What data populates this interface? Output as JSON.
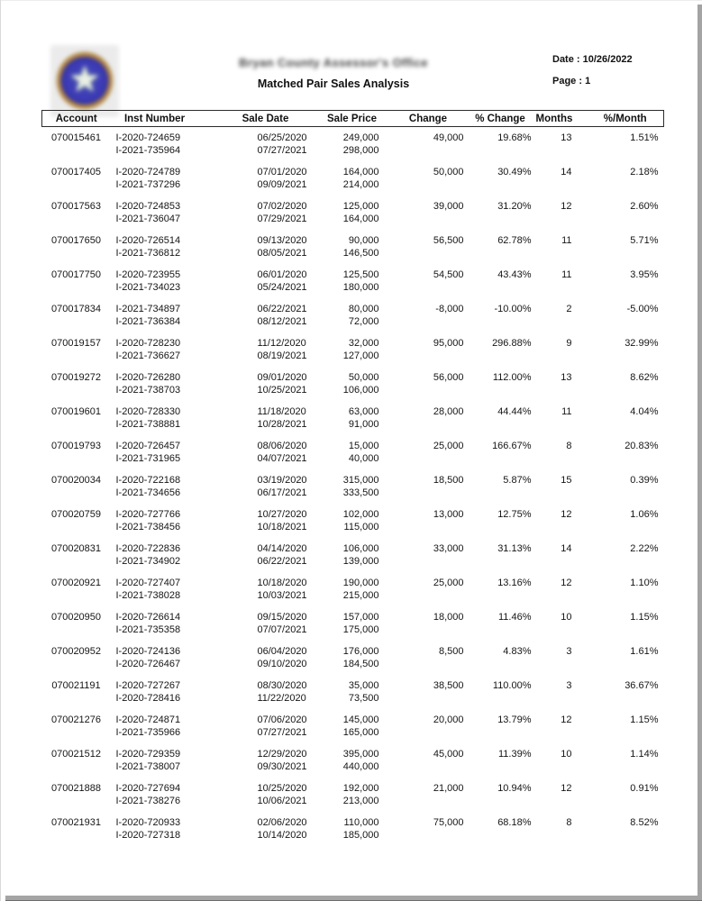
{
  "header": {
    "org_title": "Bryan County Assessor's Office",
    "report_title": "Matched Pair Sales Analysis",
    "date_label": "Date : 10/26/2022",
    "page_label": "Page : 1",
    "logo_icon": "county-seal-star",
    "star_glyph": "★"
  },
  "table": {
    "columns": [
      "Account",
      "Inst Number",
      "Sale Date",
      "Sale Price",
      "Change",
      "% Change",
      "Months",
      "%/Month"
    ],
    "rows": [
      {
        "account": "070015461",
        "inst": [
          "I-2020-724659",
          "I-2021-735964"
        ],
        "sale_date": [
          "06/25/2020",
          "07/27/2021"
        ],
        "sale_price": [
          "249,000",
          "298,000"
        ],
        "change": "49,000",
        "pct_change": "19.68%",
        "months": "13",
        "pct_per_month": "1.51%"
      },
      {
        "account": "070017405",
        "inst": [
          "I-2020-724789",
          "I-2021-737296"
        ],
        "sale_date": [
          "07/01/2020",
          "09/09/2021"
        ],
        "sale_price": [
          "164,000",
          "214,000"
        ],
        "change": "50,000",
        "pct_change": "30.49%",
        "months": "14",
        "pct_per_month": "2.18%"
      },
      {
        "account": "070017563",
        "inst": [
          "I-2020-724853",
          "I-2021-736047"
        ],
        "sale_date": [
          "07/02/2020",
          "07/29/2021"
        ],
        "sale_price": [
          "125,000",
          "164,000"
        ],
        "change": "39,000",
        "pct_change": "31.20%",
        "months": "12",
        "pct_per_month": "2.60%"
      },
      {
        "account": "070017650",
        "inst": [
          "I-2020-726514",
          "I-2021-736812"
        ],
        "sale_date": [
          "09/13/2020",
          "08/05/2021"
        ],
        "sale_price": [
          "90,000",
          "146,500"
        ],
        "change": "56,500",
        "pct_change": "62.78%",
        "months": "11",
        "pct_per_month": "5.71%"
      },
      {
        "account": "070017750",
        "inst": [
          "I-2020-723955",
          "I-2021-734023"
        ],
        "sale_date": [
          "06/01/2020",
          "05/24/2021"
        ],
        "sale_price": [
          "125,500",
          "180,000"
        ],
        "change": "54,500",
        "pct_change": "43.43%",
        "months": "11",
        "pct_per_month": "3.95%"
      },
      {
        "account": "070017834",
        "inst": [
          "I-2021-734897",
          "I-2021-736384"
        ],
        "sale_date": [
          "06/22/2021",
          "08/12/2021"
        ],
        "sale_price": [
          "80,000",
          "72,000"
        ],
        "change": "-8,000",
        "pct_change": "-10.00%",
        "months": "2",
        "pct_per_month": "-5.00%"
      },
      {
        "account": "070019157",
        "inst": [
          "I-2020-728230",
          "I-2021-736627"
        ],
        "sale_date": [
          "11/12/2020",
          "08/19/2021"
        ],
        "sale_price": [
          "32,000",
          "127,000"
        ],
        "change": "95,000",
        "pct_change": "296.88%",
        "months": "9",
        "pct_per_month": "32.99%"
      },
      {
        "account": "070019272",
        "inst": [
          "I-2020-726280",
          "I-2021-738703"
        ],
        "sale_date": [
          "09/01/2020",
          "10/25/2021"
        ],
        "sale_price": [
          "50,000",
          "106,000"
        ],
        "change": "56,000",
        "pct_change": "112.00%",
        "months": "13",
        "pct_per_month": "8.62%"
      },
      {
        "account": "070019601",
        "inst": [
          "I-2020-728330",
          "I-2021-738881"
        ],
        "sale_date": [
          "11/18/2020",
          "10/28/2021"
        ],
        "sale_price": [
          "63,000",
          "91,000"
        ],
        "change": "28,000",
        "pct_change": "44.44%",
        "months": "11",
        "pct_per_month": "4.04%"
      },
      {
        "account": "070019793",
        "inst": [
          "I-2020-726457",
          "I-2021-731965"
        ],
        "sale_date": [
          "08/06/2020",
          "04/07/2021"
        ],
        "sale_price": [
          "15,000",
          "40,000"
        ],
        "change": "25,000",
        "pct_change": "166.67%",
        "months": "8",
        "pct_per_month": "20.83%"
      },
      {
        "account": "070020034",
        "inst": [
          "I-2020-722168",
          "I-2021-734656"
        ],
        "sale_date": [
          "03/19/2020",
          "06/17/2021"
        ],
        "sale_price": [
          "315,000",
          "333,500"
        ],
        "change": "18,500",
        "pct_change": "5.87%",
        "months": "15",
        "pct_per_month": "0.39%"
      },
      {
        "account": "070020759",
        "inst": [
          "I-2020-727766",
          "I-2021-738456"
        ],
        "sale_date": [
          "10/27/2020",
          "10/18/2021"
        ],
        "sale_price": [
          "102,000",
          "115,000"
        ],
        "change": "13,000",
        "pct_change": "12.75%",
        "months": "12",
        "pct_per_month": "1.06%"
      },
      {
        "account": "070020831",
        "inst": [
          "I-2020-722836",
          "I-2021-734902"
        ],
        "sale_date": [
          "04/14/2020",
          "06/22/2021"
        ],
        "sale_price": [
          "106,000",
          "139,000"
        ],
        "change": "33,000",
        "pct_change": "31.13%",
        "months": "14",
        "pct_per_month": "2.22%"
      },
      {
        "account": "070020921",
        "inst": [
          "I-2020-727407",
          "I-2021-738028"
        ],
        "sale_date": [
          "10/18/2020",
          "10/03/2021"
        ],
        "sale_price": [
          "190,000",
          "215,000"
        ],
        "change": "25,000",
        "pct_change": "13.16%",
        "months": "12",
        "pct_per_month": "1.10%"
      },
      {
        "account": "070020950",
        "inst": [
          "I-2020-726614",
          "I-2021-735358"
        ],
        "sale_date": [
          "09/15/2020",
          "07/07/2021"
        ],
        "sale_price": [
          "157,000",
          "175,000"
        ],
        "change": "18,000",
        "pct_change": "11.46%",
        "months": "10",
        "pct_per_month": "1.15%"
      },
      {
        "account": "070020952",
        "inst": [
          "I-2020-724136",
          "I-2020-726467"
        ],
        "sale_date": [
          "06/04/2020",
          "09/10/2020"
        ],
        "sale_price": [
          "176,000",
          "184,500"
        ],
        "change": "8,500",
        "pct_change": "4.83%",
        "months": "3",
        "pct_per_month": "1.61%"
      },
      {
        "account": "070021191",
        "inst": [
          "I-2020-727267",
          "I-2020-728416"
        ],
        "sale_date": [
          "08/30/2020",
          "11/22/2020"
        ],
        "sale_price": [
          "35,000",
          "73,500"
        ],
        "change": "38,500",
        "pct_change": "110.00%",
        "months": "3",
        "pct_per_month": "36.67%"
      },
      {
        "account": "070021276",
        "inst": [
          "I-2020-724871",
          "I-2021-735966"
        ],
        "sale_date": [
          "07/06/2020",
          "07/27/2021"
        ],
        "sale_price": [
          "145,000",
          "165,000"
        ],
        "change": "20,000",
        "pct_change": "13.79%",
        "months": "12",
        "pct_per_month": "1.15%"
      },
      {
        "account": "070021512",
        "inst": [
          "I-2020-729359",
          "I-2021-738007"
        ],
        "sale_date": [
          "12/29/2020",
          "09/30/2021"
        ],
        "sale_price": [
          "395,000",
          "440,000"
        ],
        "change": "45,000",
        "pct_change": "11.39%",
        "months": "10",
        "pct_per_month": "1.14%"
      },
      {
        "account": "070021888",
        "inst": [
          "I-2020-727694",
          "I-2021-738276"
        ],
        "sale_date": [
          "10/25/2020",
          "10/06/2021"
        ],
        "sale_price": [
          "192,000",
          "213,000"
        ],
        "change": "21,000",
        "pct_change": "10.94%",
        "months": "12",
        "pct_per_month": "0.91%"
      },
      {
        "account": "070021931",
        "inst": [
          "I-2020-720933",
          "I-2020-727318"
        ],
        "sale_date": [
          "02/06/2020",
          "10/14/2020"
        ],
        "sale_price": [
          "110,000",
          "185,000"
        ],
        "change": "75,000",
        "pct_change": "68.18%",
        "months": "8",
        "pct_per_month": "8.52%"
      }
    ]
  },
  "colors": {
    "page_bg": "#ffffff",
    "text": "#151515",
    "table_border": "#2b2b2b",
    "shadow_gray": "#a4a4a4",
    "seal_blue": "#3b3ab4",
    "seal_gold": "#cf9a40"
  }
}
